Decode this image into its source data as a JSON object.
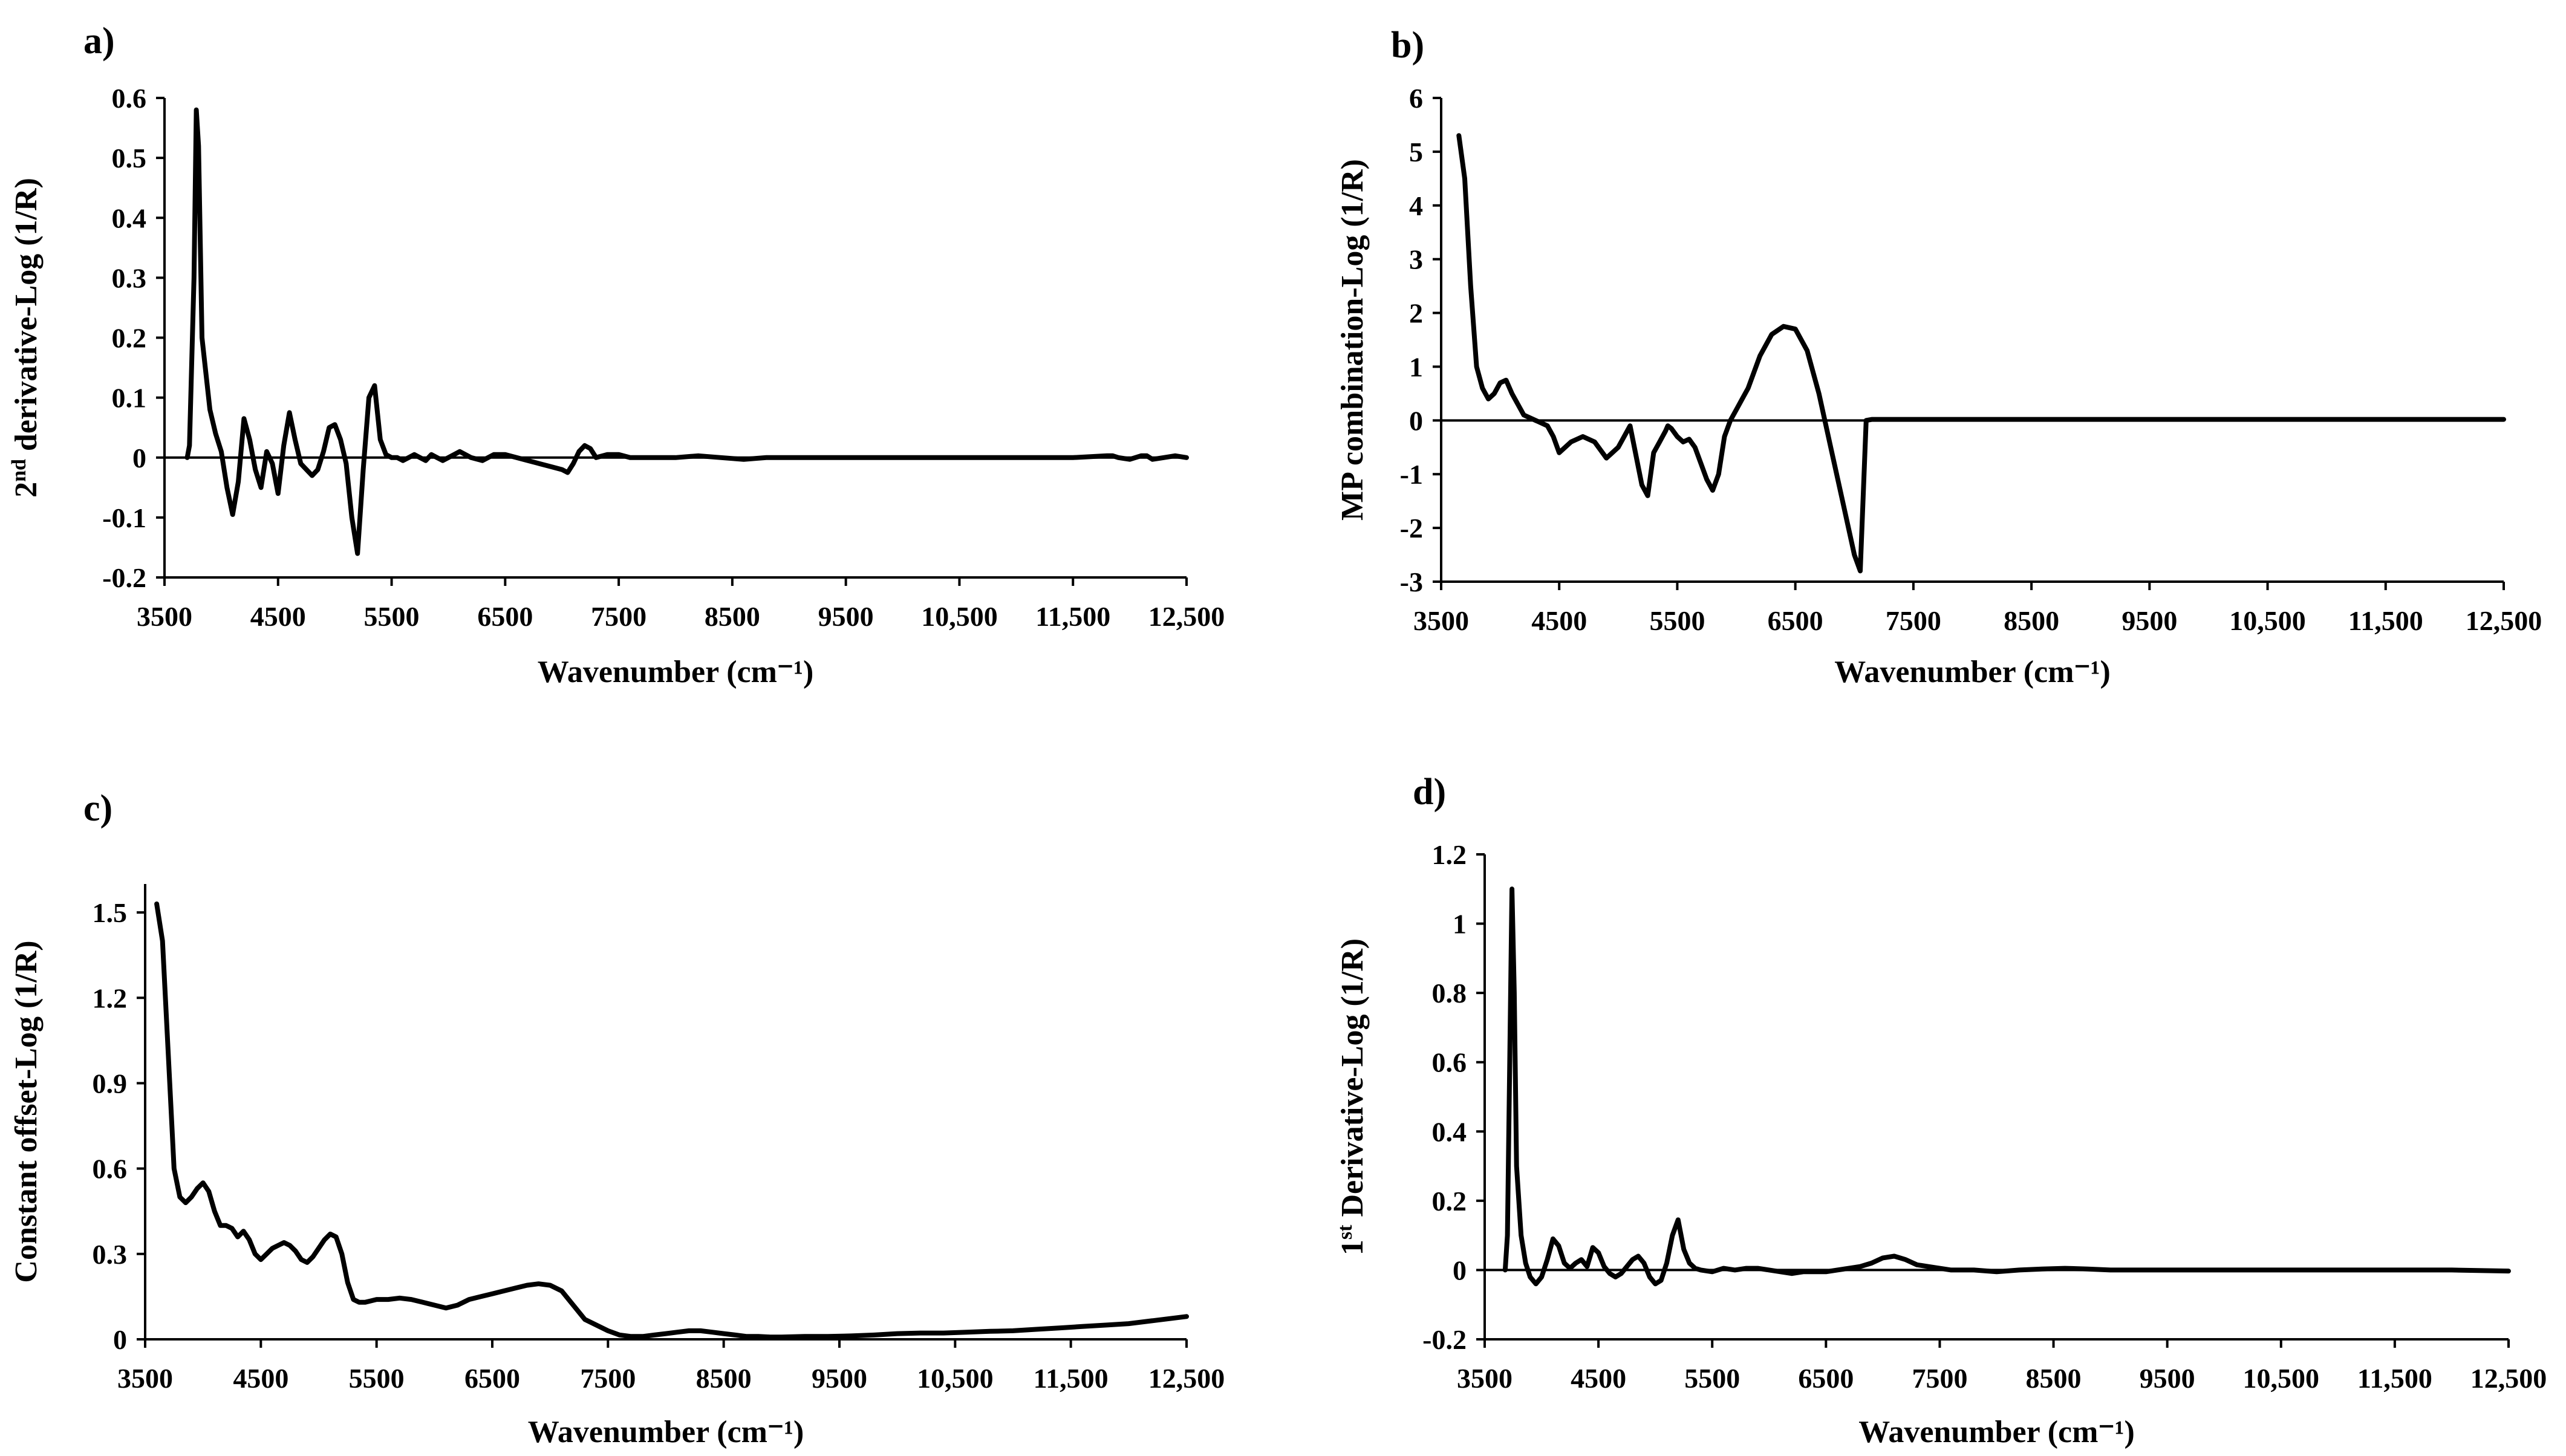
{
  "chart_data": [
    {
      "panel": "a)",
      "type": "line",
      "title": "",
      "xlabel": "Wavenumber (cm⁻¹)",
      "ylabel": "2nd derivative-Log (1/R)",
      "ylabel_parts": {
        "prefix": "2",
        "sup": "nd",
        "rest": " derivative-Log (1/R)"
      },
      "xlim": [
        3500,
        12500
      ],
      "ylim": [
        -0.2,
        0.6
      ],
      "xticks": [
        3500,
        4500,
        5500,
        6500,
        7500,
        8500,
        9500,
        10500,
        11500,
        12500
      ],
      "xtick_labels": [
        "3500",
        "4500",
        "5500",
        "6500",
        "7500",
        "8500",
        "9500",
        "10,500",
        "11,500",
        "12,500"
      ],
      "yticks": [
        -0.2,
        -0.1,
        0,
        0.1,
        0.2,
        0.3,
        0.4,
        0.5,
        0.6
      ],
      "ytick_labels": [
        "-0.2",
        "-0.1",
        "0",
        "0.1",
        "0.2",
        "0.3",
        "0.4",
        "0.5",
        "0.6"
      ],
      "zero_line": true,
      "series": [
        {
          "name": "2nd derivative",
          "x": [
            3700,
            3700,
            3720,
            3760,
            3780,
            3800,
            3830,
            3900,
            3950,
            4000,
            4050,
            4100,
            4150,
            4200,
            4250,
            4300,
            4350,
            4400,
            4450,
            4500,
            4550,
            4600,
            4650,
            4700,
            4750,
            4800,
            4850,
            4900,
            4950,
            5000,
            5050,
            5100,
            5150,
            5200,
            5250,
            5300,
            5350,
            5400,
            5450,
            5500,
            5550,
            5600,
            5650,
            5700,
            5750,
            5800,
            5850,
            5900,
            5950,
            6000,
            6100,
            6200,
            6300,
            6400,
            6500,
            6600,
            6700,
            6800,
            6900,
            7000,
            7050,
            7100,
            7150,
            7200,
            7250,
            7300,
            7400,
            7500,
            7600,
            7800,
            8000,
            8200,
            8400,
            8600,
            8800,
            9000,
            9500,
            10000,
            10500,
            11000,
            11500,
            11800,
            11850,
            11900,
            12000,
            12100,
            12150,
            12200,
            12300,
            12400,
            12500
          ],
          "values": [
            0,
            0,
            0.02,
            0.3,
            0.58,
            0.52,
            0.2,
            0.08,
            0.04,
            0.01,
            -0.05,
            -0.095,
            -0.04,
            0.065,
            0.03,
            -0.02,
            -0.05,
            0.01,
            -0.01,
            -0.06,
            0.02,
            0.075,
            0.03,
            -0.01,
            -0.02,
            -0.03,
            -0.02,
            0.01,
            0.05,
            0.055,
            0.03,
            -0.01,
            -0.1,
            -0.16,
            -0.02,
            0.1,
            0.12,
            0.03,
            0.005,
            0,
            0,
            -0.005,
            0,
            0.005,
            0,
            -0.005,
            0.005,
            0,
            -0.005,
            0,
            0.01,
            0,
            -0.005,
            0.005,
            0.005,
            0,
            -0.005,
            -0.01,
            -0.015,
            -0.02,
            -0.025,
            -0.01,
            0.01,
            0.02,
            0.015,
            0,
            0.005,
            0.005,
            0,
            0,
            0,
            0.003,
            0,
            -0.003,
            0,
            0,
            0,
            0,
            0,
            0,
            0,
            0.003,
            0.003,
            0,
            -0.003,
            0.003,
            0.003,
            -0.003,
            0,
            0.003,
            0
          ]
        }
      ]
    },
    {
      "panel": "b)",
      "type": "line",
      "title": "",
      "xlabel": "Wavenumber (cm⁻¹)",
      "ylabel": "MP combination-Log (1/R)",
      "xlim": [
        3500,
        12500
      ],
      "ylim": [
        -3,
        6
      ],
      "xticks": [
        3500,
        4500,
        5500,
        6500,
        7500,
        8500,
        9500,
        10500,
        11500,
        12500
      ],
      "xtick_labels": [
        "3500",
        "4500",
        "5500",
        "6500",
        "7500",
        "8500",
        "9500",
        "10,500",
        "11,500",
        "12,500"
      ],
      "yticks": [
        -3,
        -2,
        -1,
        0,
        1,
        2,
        3,
        4,
        5,
        6
      ],
      "ytick_labels": [
        "-3",
        "-2",
        "-1",
        "0",
        "1",
        "2",
        "3",
        "4",
        "5",
        "6"
      ],
      "zero_line": true,
      "series": [
        {
          "name": "MP combination",
          "x": [
            3650,
            3700,
            3750,
            3800,
            3850,
            3900,
            3950,
            4000,
            4050,
            4100,
            4200,
            4300,
            4400,
            4450,
            4500,
            4600,
            4700,
            4800,
            4900,
            5000,
            5100,
            5200,
            5250,
            5300,
            5350,
            5400,
            5420,
            5450,
            5500,
            5550,
            5600,
            5650,
            5700,
            5750,
            5800,
            5850,
            5900,
            5950,
            6000,
            6050,
            6100,
            6200,
            6300,
            6400,
            6500,
            6600,
            6700,
            6800,
            6900,
            7000,
            7050,
            7100,
            7150,
            7200,
            7210,
            7220,
            7230,
            7300,
            7500,
            8000,
            9000,
            10000,
            11000,
            12000,
            12500
          ],
          "values": [
            5.3,
            4.5,
            2.5,
            1.0,
            0.6,
            0.4,
            0.5,
            0.7,
            0.75,
            0.5,
            0.1,
            0,
            -0.1,
            -0.3,
            -0.6,
            -0.4,
            -0.3,
            -0.4,
            -0.7,
            -0.5,
            -0.1,
            -1.2,
            -1.4,
            -0.6,
            -0.4,
            -0.2,
            -0.1,
            -0.15,
            -0.3,
            -0.4,
            -0.35,
            -0.5,
            -0.8,
            -1.1,
            -1.3,
            -1.0,
            -0.3,
            0,
            0.2,
            0.4,
            0.6,
            1.2,
            1.6,
            1.75,
            1.7,
            1.3,
            0.5,
            -0.5,
            -1.5,
            -2.5,
            -2.8,
            0,
            0.02,
            0.02,
            0.02,
            0.02,
            0.02,
            0.02,
            0.02,
            0.02,
            0.02,
            0.02,
            0.02,
            0.02,
            0.02
          ]
        }
      ]
    },
    {
      "panel": "c)",
      "type": "line",
      "title": "",
      "xlabel": "Wavenumber (cm⁻¹)",
      "ylabel": "Constant offset-Log (1/R)",
      "xlim": [
        3500,
        12500
      ],
      "ylim": [
        0,
        1.6
      ],
      "xticks": [
        3500,
        4500,
        5500,
        6500,
        7500,
        8500,
        9500,
        10500,
        11500,
        12500
      ],
      "xtick_labels": [
        "3500",
        "4500",
        "5500",
        "6500",
        "7500",
        "8500",
        "9500",
        "10,500",
        "11,500",
        "12,500"
      ],
      "yticks": [
        0,
        0.3,
        0.6,
        0.9,
        1.2,
        1.5
      ],
      "ytick_labels": [
        "0",
        "0.3",
        "0.6",
        "0.9",
        "1.2",
        "1.5"
      ],
      "zero_line": false,
      "series": [
        {
          "name": "Constant offset",
          "x": [
            3600,
            3650,
            3700,
            3750,
            3800,
            3850,
            3900,
            3950,
            4000,
            4050,
            4100,
            4150,
            4200,
            4250,
            4300,
            4350,
            4400,
            4450,
            4500,
            4550,
            4600,
            4650,
            4700,
            4750,
            4800,
            4850,
            4900,
            4950,
            5000,
            5050,
            5100,
            5150,
            5200,
            5250,
            5300,
            5350,
            5400,
            5450,
            5500,
            5600,
            5700,
            5800,
            5900,
            6000,
            6100,
            6200,
            6300,
            6400,
            6500,
            6600,
            6700,
            6800,
            6900,
            7000,
            7100,
            7200,
            7300,
            7400,
            7500,
            7600,
            7700,
            7800,
            7900,
            8000,
            8100,
            8200,
            8300,
            8400,
            8500,
            8600,
            8700,
            8800,
            8900,
            9000,
            9200,
            9400,
            9600,
            9800,
            10000,
            10200,
            10400,
            10600,
            10800,
            11000,
            11200,
            11400,
            11600,
            11800,
            12000,
            12200,
            12400,
            12500
          ],
          "values": [
            1.53,
            1.4,
            1.0,
            0.6,
            0.5,
            0.48,
            0.5,
            0.53,
            0.55,
            0.52,
            0.45,
            0.4,
            0.4,
            0.39,
            0.36,
            0.38,
            0.35,
            0.3,
            0.28,
            0.3,
            0.32,
            0.33,
            0.34,
            0.33,
            0.31,
            0.28,
            0.27,
            0.29,
            0.32,
            0.35,
            0.37,
            0.36,
            0.3,
            0.2,
            0.14,
            0.13,
            0.13,
            0.135,
            0.14,
            0.14,
            0.145,
            0.14,
            0.13,
            0.12,
            0.11,
            0.12,
            0.14,
            0.15,
            0.16,
            0.17,
            0.18,
            0.19,
            0.195,
            0.19,
            0.17,
            0.12,
            0.07,
            0.05,
            0.03,
            0.015,
            0.01,
            0.01,
            0.015,
            0.02,
            0.025,
            0.03,
            0.03,
            0.025,
            0.02,
            0.015,
            0.01,
            0.01,
            0.008,
            0.008,
            0.01,
            0.01,
            0.012,
            0.015,
            0.02,
            0.022,
            0.022,
            0.025,
            0.028,
            0.03,
            0.035,
            0.04,
            0.045,
            0.05,
            0.055,
            0.065,
            0.075,
            0.08
          ]
        }
      ]
    },
    {
      "panel": "d)",
      "type": "line",
      "title": "",
      "xlabel": "Wavenumber (cm⁻¹)",
      "ylabel": "1st Derivative-Log (1/R)",
      "ylabel_parts": {
        "prefix": "1",
        "sup": "st",
        "rest": " Derivative-Log (1/R)"
      },
      "xlim": [
        3500,
        12500
      ],
      "ylim": [
        -0.2,
        1.2
      ],
      "xticks": [
        3500,
        4500,
        5500,
        6500,
        7500,
        8500,
        9500,
        10500,
        11500,
        12500
      ],
      "xtick_labels": [
        "3500",
        "4500",
        "5500",
        "6500",
        "7500",
        "8500",
        "9500",
        "10,500",
        "11,500",
        "12,500"
      ],
      "yticks": [
        -0.2,
        0,
        0.2,
        0.4,
        0.6,
        0.8,
        1,
        1.2
      ],
      "ytick_labels": [
        "-0.2",
        "0",
        "0.2",
        "0.4",
        "0.6",
        "0.8",
        "1",
        "1.2"
      ],
      "zero_line": true,
      "series": [
        {
          "name": "1st derivative",
          "x": [
            3680,
            3680,
            3700,
            3720,
            3740,
            3760,
            3780,
            3820,
            3860,
            3900,
            3950,
            4000,
            4050,
            4100,
            4150,
            4200,
            4250,
            4300,
            4350,
            4400,
            4450,
            4500,
            4550,
            4600,
            4650,
            4700,
            4750,
            4800,
            4850,
            4900,
            4950,
            5000,
            5050,
            5100,
            5150,
            5200,
            5250,
            5300,
            5350,
            5400,
            5500,
            5600,
            5700,
            5800,
            5900,
            6000,
            6100,
            6200,
            6300,
            6400,
            6500,
            6600,
            6700,
            6800,
            6900,
            7000,
            7100,
            7200,
            7300,
            7400,
            7500,
            7600,
            7800,
            8000,
            8200,
            8400,
            8600,
            8800,
            9000,
            9500,
            10000,
            10500,
            11000,
            11500,
            12000,
            12500
          ],
          "values": [
            0,
            0,
            0.1,
            0.6,
            1.1,
            0.8,
            0.3,
            0.1,
            0.02,
            -0.02,
            -0.04,
            -0.02,
            0.03,
            0.09,
            0.07,
            0.02,
            0.005,
            0.02,
            0.03,
            0.01,
            0.065,
            0.05,
            0.01,
            -0.01,
            -0.02,
            -0.01,
            0.01,
            0.03,
            0.04,
            0.02,
            -0.02,
            -0.04,
            -0.03,
            0.02,
            0.1,
            0.145,
            0.06,
            0.02,
            0.005,
            0,
            -0.005,
            0.005,
            0,
            0.005,
            0.005,
            0,
            -0.005,
            -0.01,
            -0.005,
            -0.005,
            -0.005,
            0,
            0.005,
            0.01,
            0.02,
            0.035,
            0.04,
            0.03,
            0.015,
            0.01,
            0.005,
            0,
            0,
            -0.005,
            0,
            0.003,
            0.005,
            0.003,
            0,
            0,
            0,
            0,
            0,
            0,
            0,
            -0.003
          ]
        }
      ]
    }
  ]
}
